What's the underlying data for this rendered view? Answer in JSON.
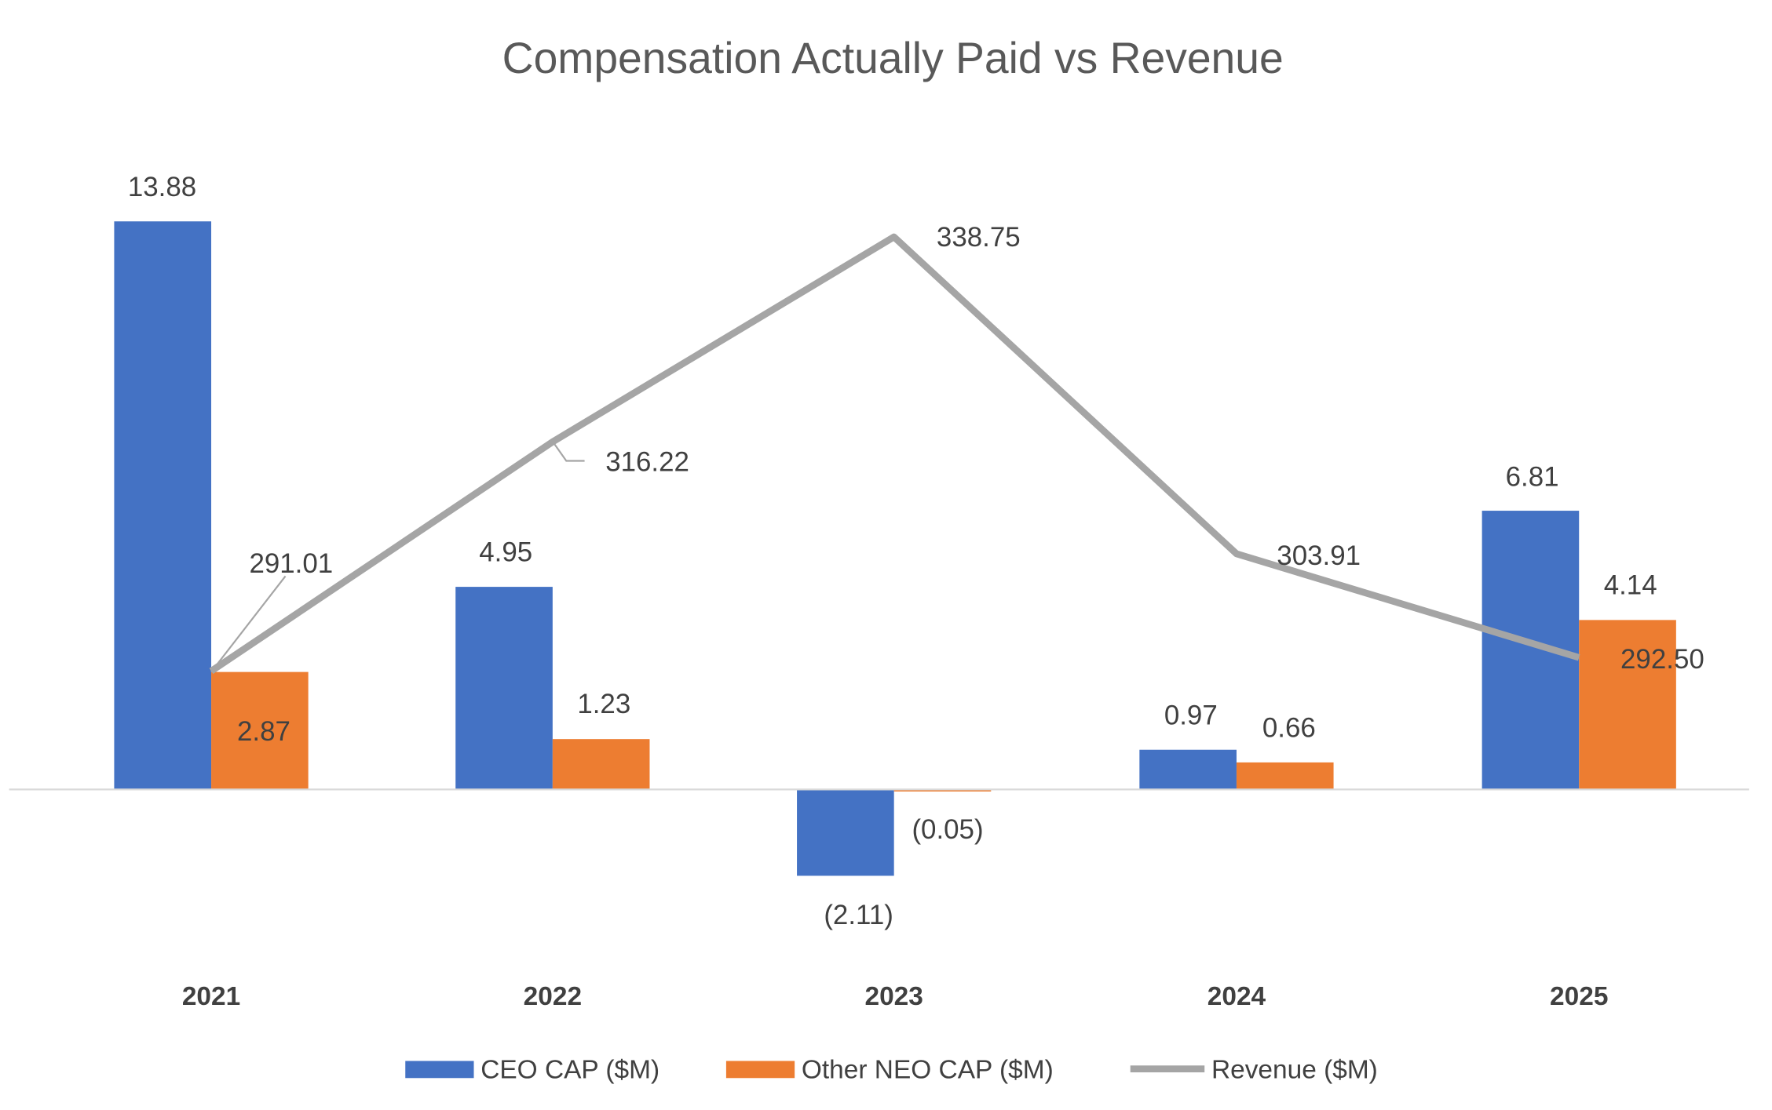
{
  "chart_data": {
    "type": "bar",
    "title": "Compensation Actually Paid vs Revenue",
    "categories": [
      "2021",
      "2022",
      "2023",
      "2024",
      "2025"
    ],
    "series": [
      {
        "name": "CEO CAP ($M)",
        "kind": "bar",
        "axis": "primary",
        "color": "#4472C4",
        "values": [
          13.88,
          4.95,
          -2.11,
          0.97,
          6.81
        ],
        "labels": [
          "13.88",
          "4.95",
          "(2.11)",
          "0.97",
          "6.81"
        ]
      },
      {
        "name": "Other NEO CAP ($M)",
        "kind": "bar",
        "axis": "primary",
        "color": "#ED7D31",
        "values": [
          2.87,
          1.23,
          -0.05,
          0.66,
          4.14
        ],
        "labels": [
          "2.87",
          "1.23",
          "(0.05)",
          "0.66",
          "4.14"
        ]
      },
      {
        "name": "Revenue ($M)",
        "kind": "line",
        "axis": "secondary",
        "color": "#A5A5A5",
        "values": [
          291.01,
          316.22,
          338.75,
          303.91,
          292.5
        ],
        "labels": [
          "291.01",
          "316.22",
          "338.75",
          "303.91",
          "292.50"
        ]
      }
    ],
    "ylim": [
      -4,
      16
    ],
    "y2lim": [
      260,
      350
    ],
    "grid": false,
    "legend": "bottom"
  }
}
